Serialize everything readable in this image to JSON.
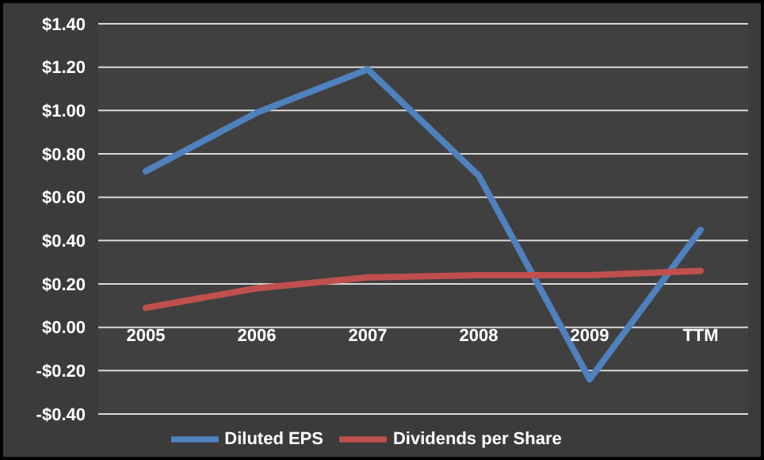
{
  "chart_data": {
    "type": "line",
    "categories": [
      "2005",
      "2006",
      "2007",
      "2008",
      "2009",
      "TTM"
    ],
    "series": [
      {
        "name": "Diluted EPS",
        "color": "#4f81bd",
        "values": [
          0.72,
          0.99,
          1.19,
          0.7,
          -0.24,
          0.45
        ]
      },
      {
        "name": "Dividends per Share",
        "color": "#c0504d",
        "values": [
          0.09,
          0.18,
          0.23,
          0.24,
          0.24,
          0.26
        ]
      }
    ],
    "ylim": [
      -0.4,
      1.4
    ],
    "yticks": [
      {
        "value": -0.4,
        "label": "-$0.40"
      },
      {
        "value": -0.2,
        "label": "-$0.20"
      },
      {
        "value": 0,
        "label": "$0.00"
      },
      {
        "value": 0.2,
        "label": "$0.20"
      },
      {
        "value": 0.4,
        "label": "$0.40"
      },
      {
        "value": 0.6,
        "label": "$0.60"
      },
      {
        "value": 0.8,
        "label": "$0.80"
      },
      {
        "value": 1.0,
        "label": "$1.00"
      },
      {
        "value": 1.2,
        "label": "$1.20"
      },
      {
        "value": 1.4,
        "label": "$1.40"
      }
    ],
    "grid": "y",
    "legend": "bottom",
    "marker": "none",
    "line_style": "solid"
  }
}
